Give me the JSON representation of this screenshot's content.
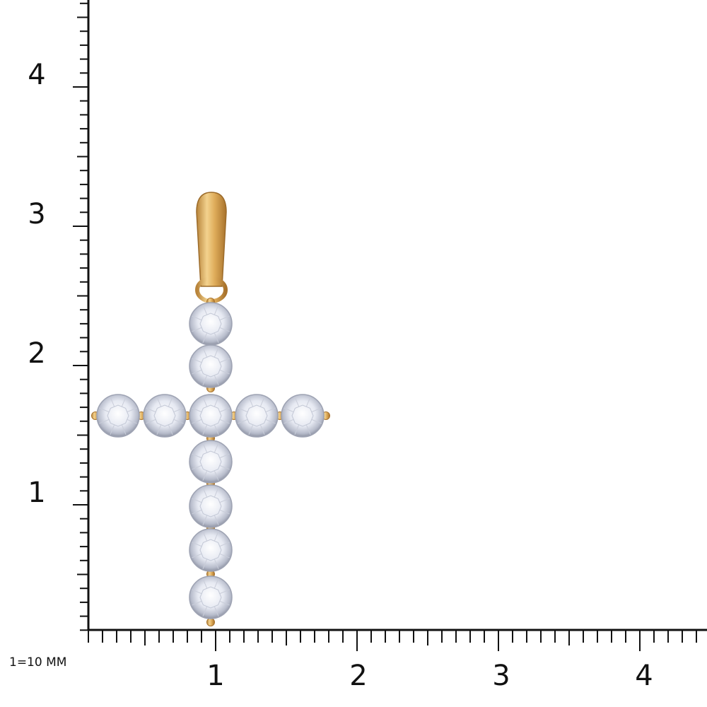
{
  "ruler": {
    "y_labels": [
      "4",
      "3",
      "2",
      "1"
    ],
    "x_labels": [
      "1",
      "2",
      "3",
      "4"
    ],
    "scale_note": "1=10 MM"
  }
}
